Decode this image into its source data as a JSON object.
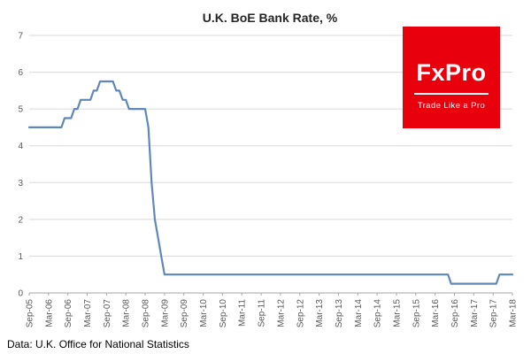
{
  "footer": {
    "source": "Data: U.K. Office for National Statistics"
  },
  "logo": {
    "brand": "FxPro",
    "tagline": "Trade Like a Pro",
    "bg_color": "#e8000d",
    "text_color": "#ffffff"
  },
  "chart_data": {
    "type": "line",
    "title": "U.K. BoE Bank Rate, %",
    "xlabel": "",
    "ylabel": "",
    "ylim": [
      0,
      7
    ],
    "y_ticks": [
      0,
      1,
      2,
      3,
      4,
      5,
      6,
      7
    ],
    "grid": "horizontal",
    "legend": "none",
    "line_color": "#5f87ba",
    "axis_color": "#a6a6a6",
    "gridline_color": "#d9d9d9",
    "tick_label_color": "#595959",
    "x_tick_step_months": 6,
    "x_tick_labels": [
      "Sep-05",
      "Mar-06",
      "Sep-06",
      "Mar-07",
      "Sep-07",
      "Mar-08",
      "Sep-08",
      "Mar-09",
      "Sep-09",
      "Mar-10",
      "Sep-10",
      "Mar-11",
      "Sep-11",
      "Mar-12",
      "Sep-12",
      "Mar-13",
      "Sep-13",
      "Mar-14",
      "Sep-14",
      "Mar-15",
      "Sep-15",
      "Mar-16",
      "Sep-16",
      "Mar-17",
      "Sep-17",
      "Mar-18"
    ],
    "series": [
      {
        "name": "U.K. BoE Bank Rate",
        "x_unit": "month",
        "start": "Sep-05",
        "end": "Mar-18",
        "segments": [
          {
            "from": "Sep-05",
            "to": "Jul-06",
            "value": 4.5
          },
          {
            "from": "Aug-06",
            "to": "Oct-06",
            "value": 4.75
          },
          {
            "from": "Nov-06",
            "to": "Dec-06",
            "value": 5.0
          },
          {
            "from": "Jan-07",
            "to": "Apr-07",
            "value": 5.25
          },
          {
            "from": "May-07",
            "to": "Jun-07",
            "value": 5.5
          },
          {
            "from": "Jul-07",
            "to": "Nov-07",
            "value": 5.75
          },
          {
            "from": "Dec-07",
            "to": "Jan-08",
            "value": 5.5
          },
          {
            "from": "Feb-08",
            "to": "Mar-08",
            "value": 5.25
          },
          {
            "from": "Apr-08",
            "to": "Sep-08",
            "value": 5.0
          },
          {
            "from": "Oct-08",
            "to": "Oct-08",
            "value": 4.5
          },
          {
            "from": "Nov-08",
            "to": "Nov-08",
            "value": 3.0
          },
          {
            "from": "Dec-08",
            "to": "Dec-08",
            "value": 2.0
          },
          {
            "from": "Jan-09",
            "to": "Jan-09",
            "value": 1.5
          },
          {
            "from": "Feb-09",
            "to": "Feb-09",
            "value": 1.0
          },
          {
            "from": "Mar-09",
            "to": "Jul-16",
            "value": 0.5
          },
          {
            "from": "Aug-16",
            "to": "Oct-17",
            "value": 0.25
          },
          {
            "from": "Nov-17",
            "to": "Mar-18",
            "value": 0.5
          }
        ]
      }
    ]
  }
}
